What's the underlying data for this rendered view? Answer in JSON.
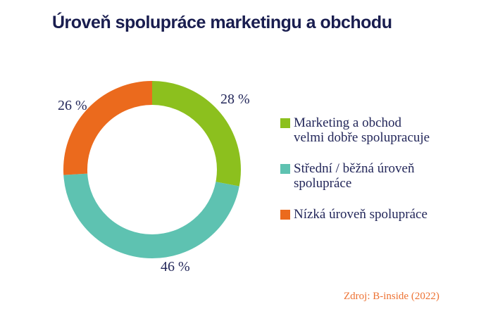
{
  "title": "Úroveň spolupráce marketingu a obchodu",
  "source": "Zdroj: B-inside (2022)",
  "colors": {
    "title_navy": "#191d4f",
    "label_navy": "#23275a",
    "green": "#8cc01e",
    "teal": "#5ec2b1",
    "orange": "#eb6a1d",
    "source_orange": "#ed7233",
    "background": "#ffffff"
  },
  "chart_data": {
    "type": "pie",
    "subtype": "donut",
    "title": "Úroveň spolupráce marketingu a obchodu",
    "categories": [
      "Marketing a obchod velmi dobře spolupracuje",
      "Střední / běžná úroveň spolupráce",
      "Nízká úroveň spolupráce"
    ],
    "values": [
      28,
      46,
      26
    ],
    "unit": "%",
    "colors": [
      "#8cc01e",
      "#5ec2b1",
      "#eb6a1d"
    ],
    "slice_labels": [
      "28 %",
      "46 %",
      "26 %"
    ],
    "start_angle": "top",
    "direction": "clockwise",
    "inner_radius_ratio": 0.73,
    "legend_position": "right",
    "grid": false
  },
  "legend": {
    "items": [
      {
        "label": "Marketing a obchod\nvelmi dobře spolupracuje",
        "color": "#8cc01e"
      },
      {
        "label": "Střední / běžná úroveň\nspolupráce",
        "color": "#5ec2b1"
      },
      {
        "label": "Nízká úroveň spolupráce",
        "color": "#eb6a1d"
      }
    ]
  }
}
